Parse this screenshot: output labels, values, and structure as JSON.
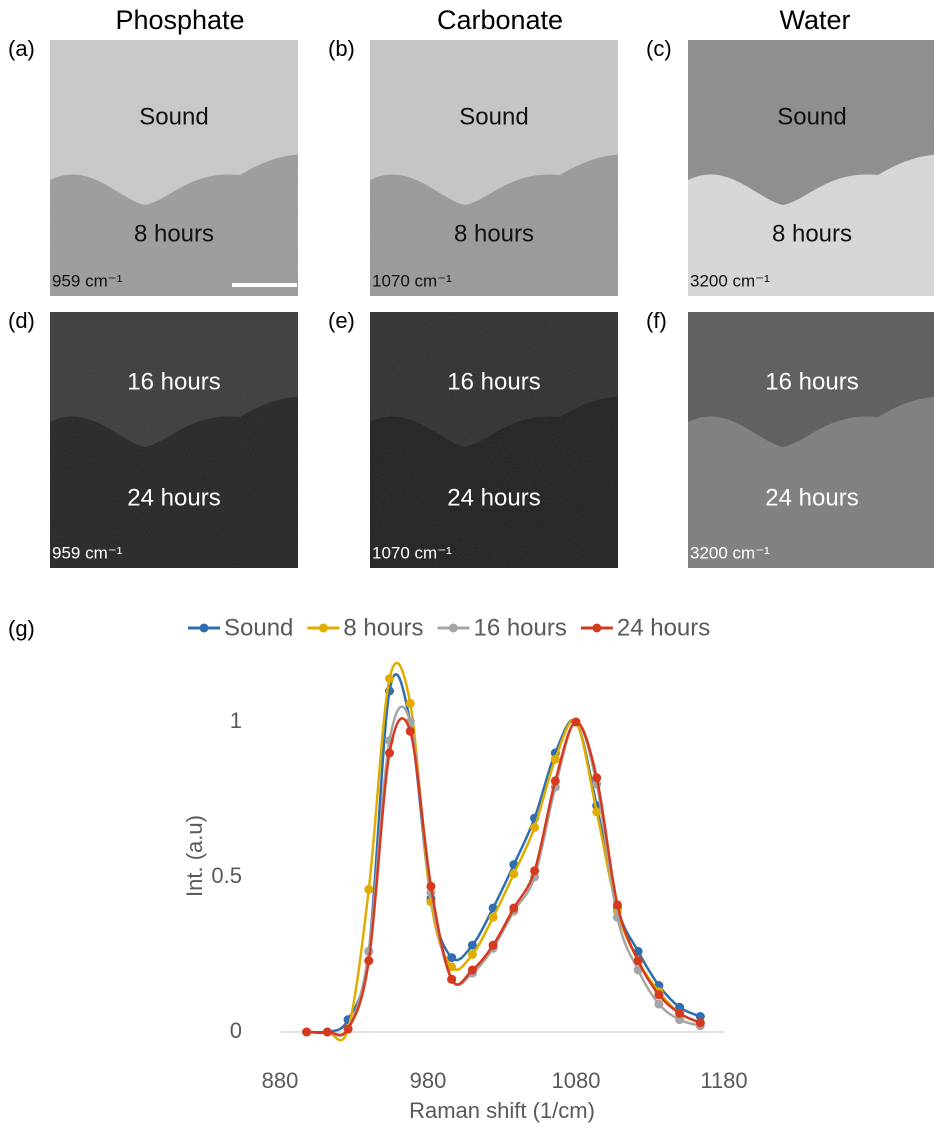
{
  "column_titles": [
    "Phosphate",
    "Carbonate",
    "Water"
  ],
  "panels": [
    {
      "label": "(a)",
      "top_text": "Sound",
      "bottom_text": "8 hours",
      "wavenumber": "959 cm⁻¹"
    },
    {
      "label": "(b)",
      "top_text": "Sound",
      "bottom_text": "8 hours",
      "wavenumber": "1070 cm⁻¹"
    },
    {
      "label": "(c)",
      "top_text": "Sound",
      "bottom_text": "8 hours",
      "wavenumber": "3200 cm⁻¹"
    },
    {
      "label": "(d)",
      "top_text": "16 hours",
      "bottom_text": "24 hours",
      "wavenumber": "959 cm⁻¹"
    },
    {
      "label": "(e)",
      "top_text": "16 hours",
      "bottom_text": "24 hours",
      "wavenumber": "1070 cm⁻¹"
    },
    {
      "label": "(f)",
      "top_text": "16 hours",
      "bottom_text": "24 hours",
      "wavenumber": "3200 cm⁻¹"
    }
  ],
  "chart_panel_label": "(g)",
  "chart_data": {
    "type": "line",
    "x_label": "Raman shift (1/cm)",
    "y_label": "Int. (a.u)",
    "x": [
      898,
      912,
      926,
      940,
      954,
      968,
      982,
      996,
      1010,
      1024,
      1038,
      1052,
      1066,
      1080,
      1094,
      1108,
      1122,
      1136,
      1150,
      1164
    ],
    "series": [
      {
        "name": "Sound",
        "color": "#2f6eb0",
        "values": [
          0,
          0,
          0.04,
          0.26,
          1.1,
          1.0,
          0.43,
          0.24,
          0.28,
          0.4,
          0.54,
          0.69,
          0.9,
          1.0,
          0.73,
          0.4,
          0.26,
          0.15,
          0.08,
          0.05
        ]
      },
      {
        "name": "8 hours",
        "color": "#e0ac00",
        "values": [
          0,
          0,
          0.01,
          0.46,
          1.14,
          1.06,
          0.42,
          0.21,
          0.25,
          0.37,
          0.51,
          0.66,
          0.88,
          1.0,
          0.71,
          0.39,
          0.23,
          0.13,
          0.06,
          0.03
        ]
      },
      {
        "name": "16 hours",
        "color": "#a5a5a5",
        "values": [
          0,
          0,
          0.01,
          0.26,
          0.94,
          1.0,
          0.45,
          0.17,
          0.19,
          0.27,
          0.39,
          0.5,
          0.79,
          1.0,
          0.8,
          0.37,
          0.2,
          0.09,
          0.04,
          0.02
        ]
      },
      {
        "name": "24 hours",
        "color": "#d63a1e",
        "values": [
          0,
          0,
          0.01,
          0.23,
          0.9,
          0.97,
          0.47,
          0.17,
          0.2,
          0.28,
          0.4,
          0.52,
          0.81,
          1.0,
          0.82,
          0.41,
          0.23,
          0.12,
          0.06,
          0.03
        ]
      }
    ],
    "xlim": [
      880,
      1180
    ],
    "xticks": [
      880,
      980,
      1080,
      1180
    ],
    "ylim": [
      0,
      1.2
    ],
    "yticks": [
      0,
      0.5,
      1
    ],
    "legend": "top",
    "grid": false
  }
}
